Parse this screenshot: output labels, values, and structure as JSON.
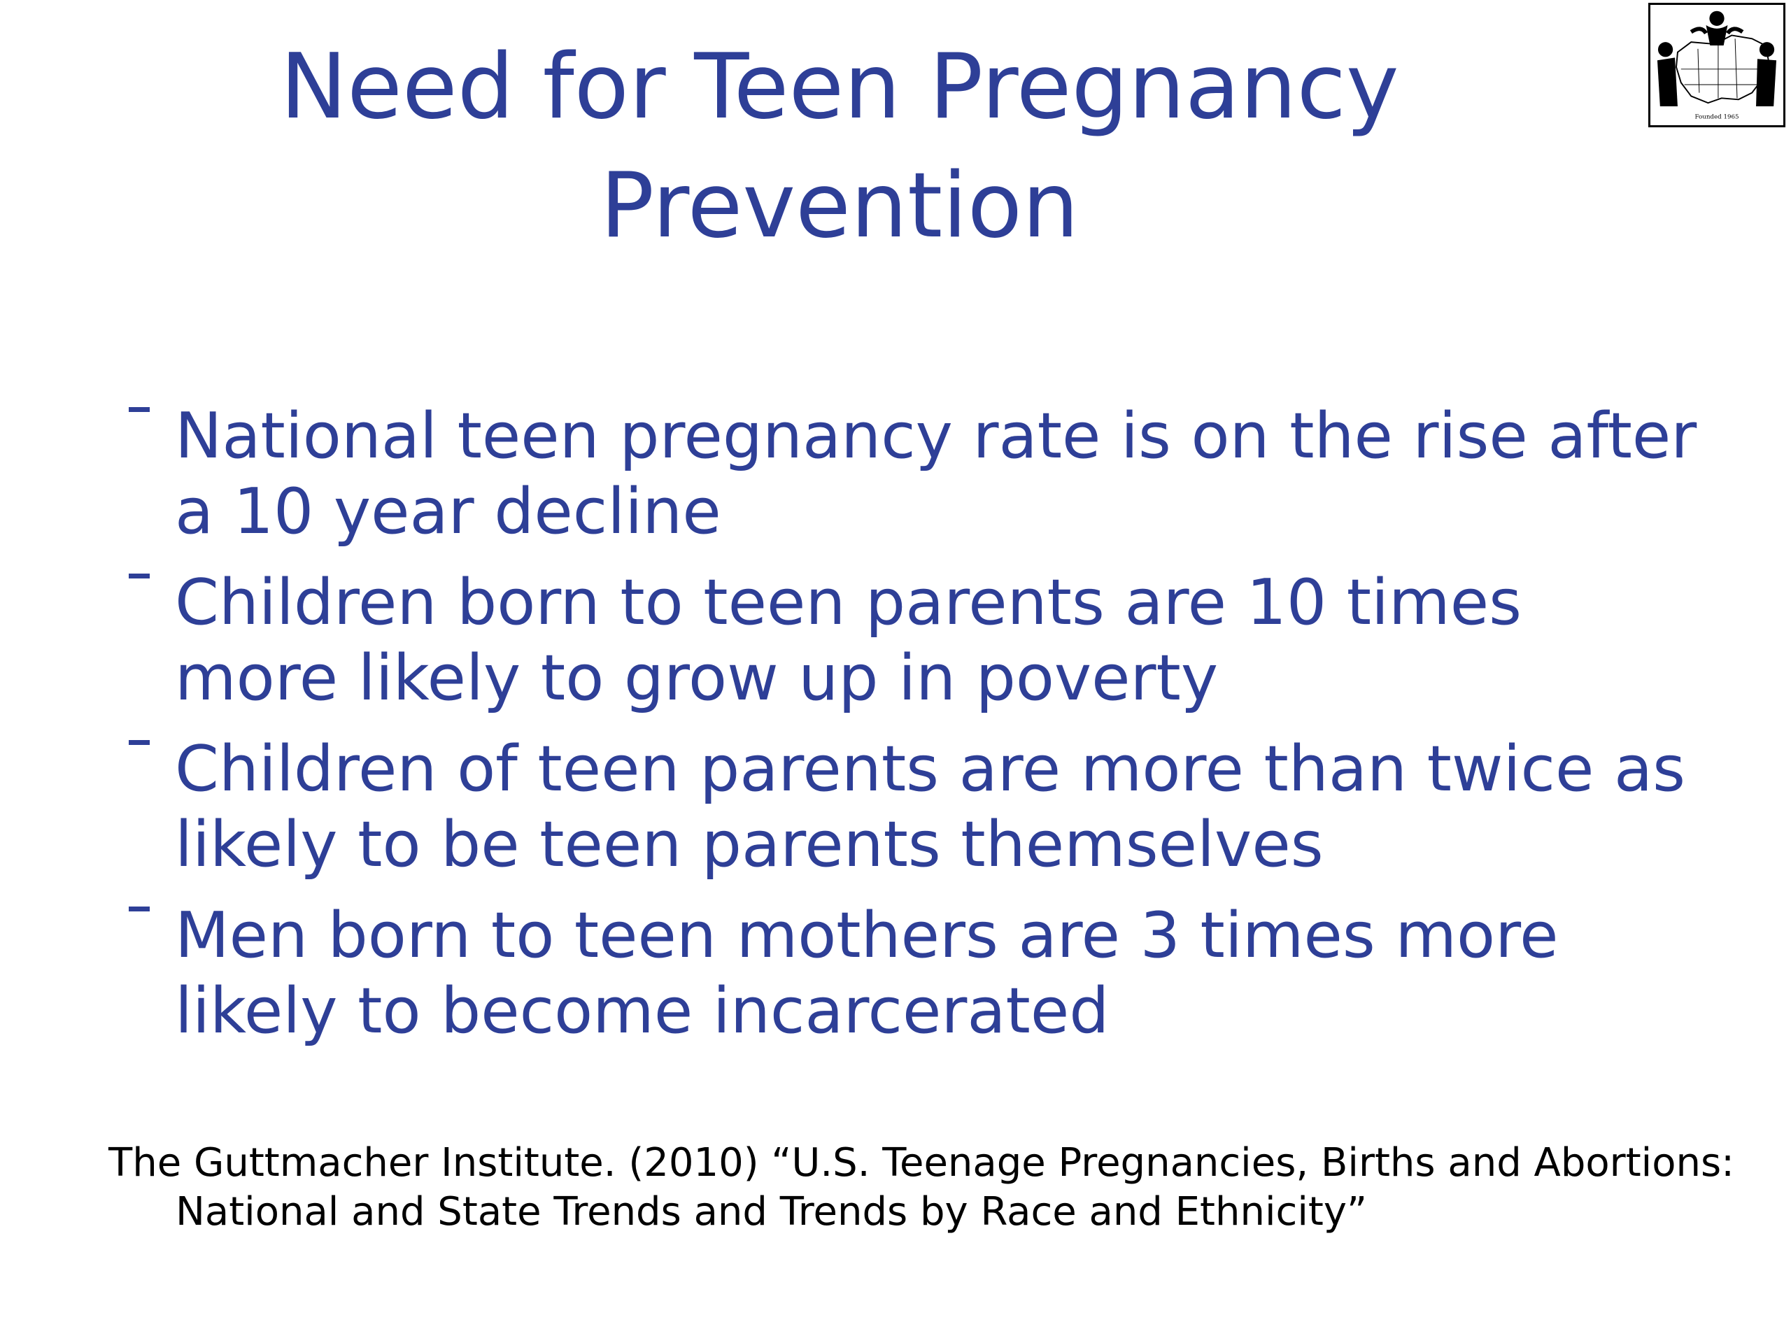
{
  "slide": {
    "title_line1": "Need for Teen Pregnancy",
    "title_line2": "Prevention",
    "bullets": [
      {
        "text": "National teen pregnancy rate is on the rise after a 10 year decline"
      },
      {
        "text": "Children born to teen parents are 10 times more likely to grow up in poverty"
      },
      {
        "text": "Children of teen parents are more than twice as likely to be teen parents themselves"
      },
      {
        "text": "Men born to teen mothers are 3 times more likely to become incarcerated"
      }
    ],
    "citation": "The Guttmacher Institute. (2010) “U.S. Teenage Pregnancies, Births and Abortions: National and State Trends and Trends by Race and Ethnicity”",
    "logo": {
      "icon": "organization-logo-map-figures",
      "caption": "Founded 1965"
    }
  },
  "colors": {
    "title": "#2e3f97",
    "body_text": "#2e3f97",
    "citation_text": "#000000",
    "background": "#ffffff"
  }
}
